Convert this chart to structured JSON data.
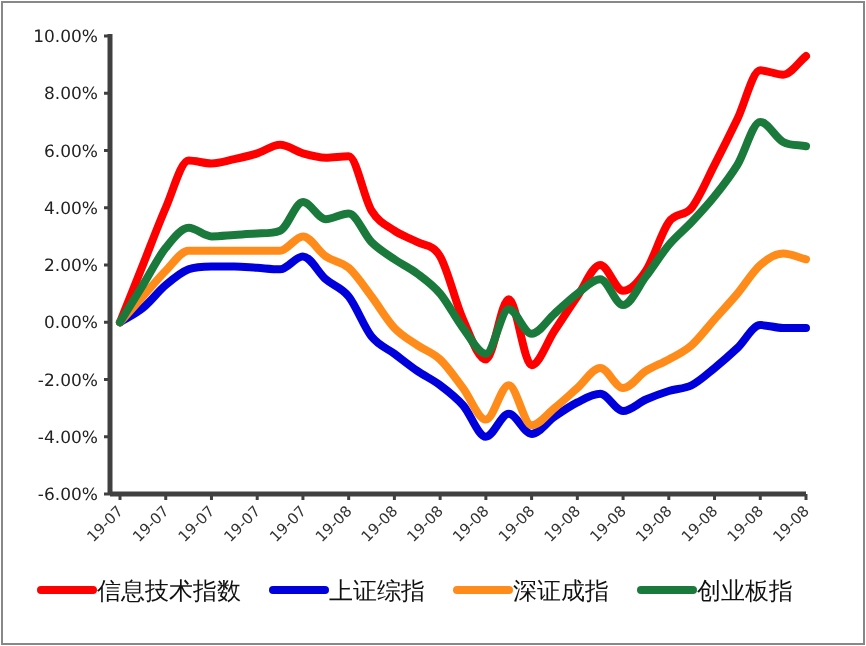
{
  "chart_data": {
    "type": "line",
    "categories": [
      "19-07",
      null,
      "19-07",
      null,
      "19-07",
      null,
      "19-07",
      null,
      "19-07",
      null,
      "19-08",
      null,
      "19-08",
      null,
      "19-08",
      null,
      "19-08",
      null,
      "19-08",
      null,
      "19-08",
      null,
      "19-08",
      null,
      "19-08",
      null,
      "19-08",
      null,
      "19-08",
      null,
      "19-08"
    ],
    "series": [
      {
        "name": "信息技术指数",
        "color": "#ff0000",
        "values": [
          0,
          2.0,
          4.0,
          5.65,
          5.55,
          5.7,
          5.9,
          6.2,
          5.9,
          5.75,
          5.8,
          3.9,
          3.2,
          2.8,
          2.3,
          0.1,
          -1.3,
          0.8,
          -1.5,
          -0.3,
          0.9,
          2.0,
          1.1,
          1.8,
          3.5,
          4.0,
          5.5,
          7.1,
          8.8,
          8.65,
          9.3
        ]
      },
      {
        "name": "上证综指",
        "color": "#0000dd",
        "values": [
          0,
          0.5,
          1.3,
          1.85,
          1.95,
          1.95,
          1.9,
          1.85,
          2.3,
          1.5,
          0.9,
          -0.5,
          -1.1,
          -1.7,
          -2.2,
          -2.9,
          -4.0,
          -3.2,
          -3.9,
          -3.3,
          -2.8,
          -2.5,
          -3.1,
          -2.7,
          -2.4,
          -2.2,
          -1.6,
          -0.9,
          -0.1,
          -0.2,
          -0.2
        ]
      },
      {
        "name": "深证成指",
        "color": "#ff8c1a",
        "values": [
          0,
          0.9,
          1.8,
          2.5,
          2.5,
          2.5,
          2.5,
          2.5,
          3.0,
          2.3,
          1.9,
          0.9,
          -0.2,
          -0.8,
          -1.3,
          -2.3,
          -3.4,
          -2.2,
          -3.6,
          -3.0,
          -2.3,
          -1.6,
          -2.3,
          -1.7,
          -1.3,
          -0.8,
          0.1,
          1.0,
          2.0,
          2.4,
          2.2
        ]
      },
      {
        "name": "创业板指",
        "color": "#1a7a3c",
        "values": [
          0,
          1.3,
          2.6,
          3.3,
          3.0,
          3.05,
          3.1,
          3.2,
          4.2,
          3.6,
          3.8,
          2.8,
          2.2,
          1.7,
          1.0,
          -0.2,
          -1.1,
          0.45,
          -0.4,
          0.3,
          1.0,
          1.5,
          0.6,
          1.6,
          2.7,
          3.5,
          4.4,
          5.5,
          7.0,
          6.3,
          6.15
        ]
      }
    ],
    "ylim": [
      -6,
      10
    ],
    "yticks": [
      {
        "value": -6,
        "label": "-6.00%"
      },
      {
        "value": -4,
        "label": "-4.00%"
      },
      {
        "value": -2,
        "label": "-2.00%"
      },
      {
        "value": 0,
        "label": "0.00%"
      },
      {
        "value": 2,
        "label": "2.00%"
      },
      {
        "value": 4,
        "label": "4.00%"
      },
      {
        "value": 6,
        "label": "6.00%"
      },
      {
        "value": 8,
        "label": "8.00%"
      },
      {
        "value": 10,
        "label": "10.00%"
      }
    ],
    "grid": false,
    "legend": "bottom",
    "marker": "none",
    "line_style": "solid"
  }
}
